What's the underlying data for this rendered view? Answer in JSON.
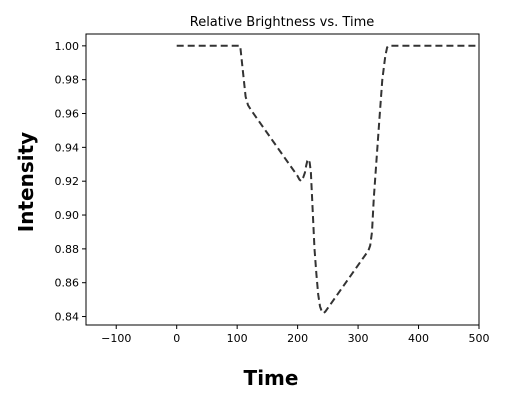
{
  "chart_data": {
    "type": "line",
    "title": "Relative Brightness vs. Time",
    "xlabel": "Time",
    "ylabel": "Intensity",
    "xlim": [
      -150,
      500
    ],
    "ylim": [
      0.835,
      1.007
    ],
    "xticks": [
      -100,
      0,
      100,
      200,
      300,
      400,
      500
    ],
    "xtick_labels": [
      "−100",
      "0",
      "100",
      "200",
      "300",
      "400",
      "500"
    ],
    "yticks": [
      0.84,
      0.86,
      0.88,
      0.9,
      0.92,
      0.94,
      0.96,
      0.98,
      1.0
    ],
    "ytick_labels": [
      "0.84",
      "0.86",
      "0.88",
      "0.90",
      "0.92",
      "0.94",
      "0.96",
      "0.98",
      "1.00"
    ],
    "grid": false,
    "series": [
      {
        "line_style": "dashed",
        "color": "#333333",
        "x": [
          0,
          105,
          108,
          111,
          114,
          118,
          123,
          200,
          203,
          206,
          209,
          212,
          214,
          216,
          218,
          220,
          222,
          224,
          226,
          228,
          231,
          234,
          237,
          240,
          243,
          246,
          250,
          317,
          320,
          323,
          326,
          330,
          335,
          340,
          345,
          348,
          350,
          500
        ],
        "y": [
          1.0,
          1.0,
          0.99,
          0.98,
          0.97,
          0.965,
          0.962,
          0.923,
          0.921,
          0.92,
          0.922,
          0.925,
          0.929,
          0.932,
          0.933,
          0.931,
          0.925,
          0.91,
          0.895,
          0.88,
          0.865,
          0.853,
          0.846,
          0.843,
          0.842,
          0.843,
          0.845,
          0.879,
          0.882,
          0.89,
          0.91,
          0.93,
          0.955,
          0.98,
          0.994,
          0.999,
          1.0,
          1.0
        ]
      }
    ]
  }
}
